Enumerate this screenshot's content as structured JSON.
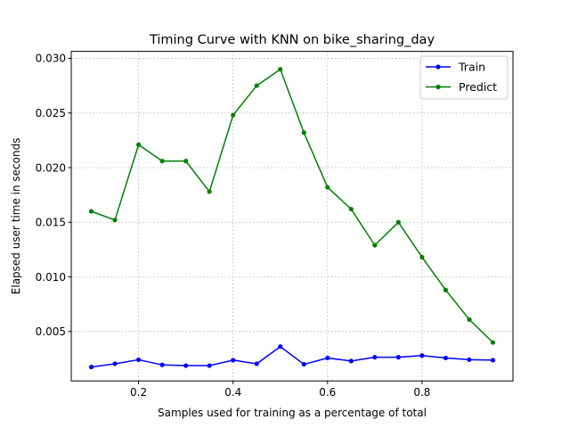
{
  "chart_data": {
    "type": "line",
    "title": "Timing Curve with KNN on bike_sharing_day",
    "xlabel": "Samples used for training as a percentage of total",
    "ylabel": "Elapsed user time in seconds",
    "xlim": [
      0.0575,
      0.9925
    ],
    "ylim": [
      0.00048,
      0.03064
    ],
    "xticks": [
      0.2,
      0.4,
      0.6,
      0.8
    ],
    "xtick_labels": [
      "0.2",
      "0.4",
      "0.6",
      "0.8"
    ],
    "yticks": [
      0.005,
      0.01,
      0.015,
      0.02,
      0.025,
      0.03
    ],
    "ytick_labels": [
      "0.005",
      "0.010",
      "0.015",
      "0.020",
      "0.025",
      "0.030"
    ],
    "grid": true,
    "legend_position": "top-right",
    "x": [
      0.1,
      0.15,
      0.2,
      0.25,
      0.3,
      0.35,
      0.4,
      0.45,
      0.5,
      0.55,
      0.6,
      0.65,
      0.7,
      0.75,
      0.8,
      0.85,
      0.9,
      0.95
    ],
    "series": [
      {
        "name": "Train",
        "color": "#0000ff",
        "values": [
          0.00175,
          0.00205,
          0.00242,
          0.00195,
          0.00188,
          0.00188,
          0.00238,
          0.00205,
          0.00362,
          0.002,
          0.00258,
          0.0023,
          0.00265,
          0.00265,
          0.0028,
          0.00258,
          0.00242,
          0.00238
        ]
      },
      {
        "name": "Predict",
        "color": "#008000",
        "values": [
          0.016,
          0.0152,
          0.0221,
          0.0206,
          0.0206,
          0.0178,
          0.0248,
          0.0275,
          0.029,
          0.0232,
          0.0182,
          0.0162,
          0.0129,
          0.015,
          0.0118,
          0.0088,
          0.0061,
          0.004
        ]
      }
    ]
  }
}
